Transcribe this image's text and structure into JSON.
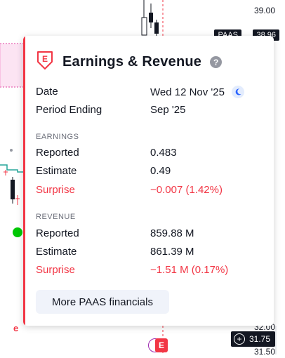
{
  "chart": {
    "price_top": "39.00",
    "ticker_badge": "PAAS",
    "ticker_price_badge": "38.96",
    "price_mid": "32.00",
    "price_bottom": "31.50",
    "current_price": "31.75",
    "event_marker_letter": "e",
    "earnings_marker_letter": "E",
    "accent_color": "#f23645",
    "highlight_color": "#fce4f3",
    "line_color": "#26a69a"
  },
  "popup": {
    "title": "Earnings & Revenue",
    "help_label": "?",
    "date_label": "Date",
    "date_value": "Wed 12 Nov '25",
    "period_label": "Period Ending",
    "period_value": "Sep '25",
    "earnings_section": "EARNINGS",
    "earnings": {
      "reported_label": "Reported",
      "reported_value": "0.483",
      "estimate_label": "Estimate",
      "estimate_value": "0.49",
      "surprise_label": "Surprise",
      "surprise_value": "−0.007 (1.42%)"
    },
    "revenue_section": "REVENUE",
    "revenue": {
      "reported_label": "Reported",
      "reported_value": "859.88 M",
      "estimate_label": "Estimate",
      "estimate_value": "861.39 M",
      "surprise_label": "Surprise",
      "surprise_value": "−1.51 M (0.17%)"
    },
    "more_button": "More PAAS financials"
  }
}
